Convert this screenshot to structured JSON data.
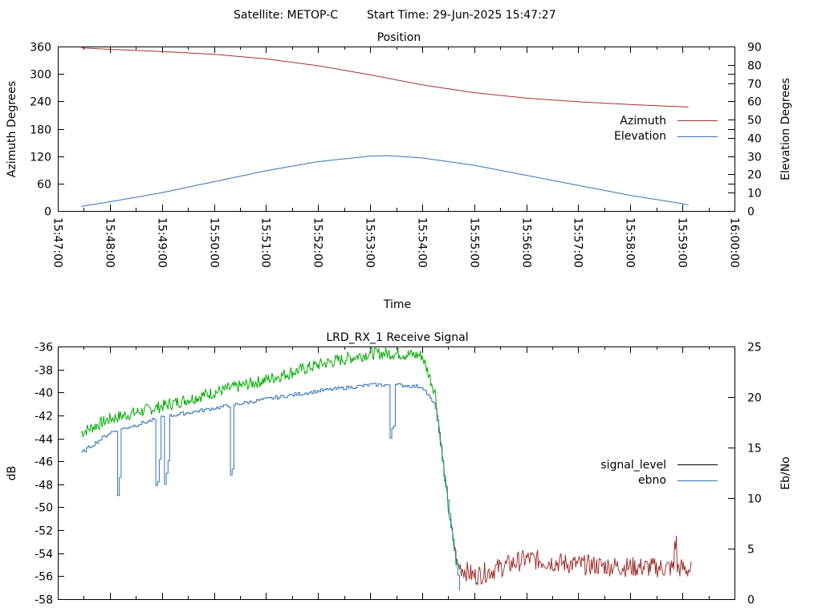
{
  "header": {
    "satellite": "Satellite: METOP-C",
    "start_time": "Start Time: 29-Jun-2025 15:47:27"
  },
  "colors": {
    "azimuth": "#a03232",
    "elevation": "#3273b4",
    "signal_level": "#000000",
    "signal_level_low": "#a03232",
    "signal_level_high": "#00aa00",
    "ebno": "#3273b4"
  },
  "chart_data": [
    {
      "type": "line",
      "title": "Position",
      "xlabel": "Time",
      "ylabel": "Azimuth Degrees",
      "y2label": "Elevation Degrees",
      "xlim": [
        "15:47:00",
        "16:00:00"
      ],
      "ylim": [
        0,
        360
      ],
      "y2lim": [
        0,
        90
      ],
      "xticks": [
        "15:47:00",
        "15:48:00",
        "15:49:00",
        "15:50:00",
        "15:51:00",
        "15:52:00",
        "15:53:00",
        "15:54:00",
        "15:55:00",
        "15:56:00",
        "15:57:00",
        "15:58:00",
        "15:59:00",
        "16:00:00"
      ],
      "yticks": [
        "0",
        "60",
        "120",
        "180",
        "240",
        "300",
        "360"
      ],
      "y2ticks": [
        "0",
        "10",
        "20",
        "30",
        "40",
        "50",
        "60",
        "70",
        "80",
        "90"
      ],
      "legend": "right",
      "series": [
        {
          "name": "Azimuth",
          "axis": "y",
          "x": [
            "15:47:27",
            "15:48:00",
            "15:49:00",
            "15:50:00",
            "15:51:00",
            "15:52:00",
            "15:53:00",
            "15:54:00",
            "15:55:00",
            "15:56:00",
            "15:57:00",
            "15:58:00",
            "15:59:00",
            "15:59:10"
          ],
          "values": [
            357,
            354,
            349,
            343,
            333,
            318,
            298,
            276,
            259,
            247,
            239,
            233,
            228,
            227
          ]
        },
        {
          "name": "Elevation",
          "axis": "y2",
          "x": [
            "15:47:27",
            "15:48:00",
            "15:49:00",
            "15:50:00",
            "15:51:00",
            "15:52:00",
            "15:53:00",
            "15:53:20",
            "15:54:00",
            "15:55:00",
            "15:56:00",
            "15:57:00",
            "15:58:00",
            "15:59:00",
            "15:59:10"
          ],
          "values": [
            2.5,
            5,
            10,
            16,
            22,
            27,
            30,
            30.3,
            29,
            25,
            19.5,
            14,
            8.5,
            4,
            2.8
          ]
        }
      ]
    },
    {
      "type": "line",
      "title": "LRD_RX_1 Receive Signal",
      "ylabel": "dB",
      "y2label": "Eb/No",
      "xlim": [
        "15:47:00",
        "16:00:00"
      ],
      "ylim": [
        -58,
        -36
      ],
      "y2lim": [
        0,
        25
      ],
      "yticks": [
        "-36",
        "-38",
        "-40",
        "-42",
        "-44",
        "-46",
        "-48",
        "-50",
        "-52",
        "-54",
        "-56",
        "-58"
      ],
      "y2ticks": [
        "0",
        "5",
        "10",
        "15",
        "20",
        "25"
      ],
      "legend": "right",
      "series": [
        {
          "name": "signal_level",
          "axis": "y",
          "x": [
            "15:47:27",
            "15:48:00",
            "15:49:00",
            "15:50:00",
            "15:51:00",
            "15:52:00",
            "15:53:00",
            "15:53:30",
            "15:54:00",
            "15:54:15",
            "15:54:30",
            "15:54:40",
            "15:55:00",
            "15:56:00",
            "15:57:00",
            "15:58:00",
            "15:59:00",
            "15:59:10"
          ],
          "values": [
            -43.5,
            -42.3,
            -41.2,
            -40.0,
            -38.9,
            -37.6,
            -36.6,
            -36.6,
            -36.8,
            -40.0,
            -50.0,
            -55.0,
            -56.0,
            -54.5,
            -55.0,
            -55.2,
            -55.3,
            -55.5
          ]
        },
        {
          "name": "ebno",
          "axis": "y2",
          "x": [
            "15:47:27",
            "15:48:00",
            "15:49:00",
            "15:50:00",
            "15:51:00",
            "15:52:00",
            "15:53:00",
            "15:53:30",
            "15:54:00",
            "15:54:15",
            "15:54:30",
            "15:54:40",
            "15:54:44"
          ],
          "values": [
            14.5,
            16.5,
            18.0,
            18.9,
            19.8,
            20.6,
            21.2,
            21.2,
            21.0,
            19.0,
            9.0,
            3.0,
            0
          ]
        }
      ]
    }
  ]
}
